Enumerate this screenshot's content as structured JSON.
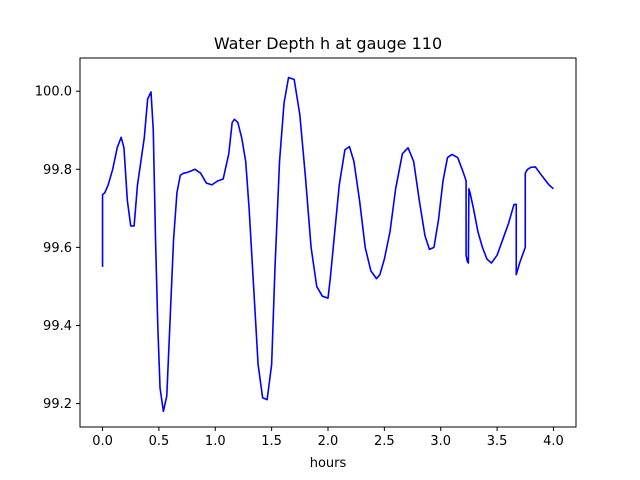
{
  "chart_data": {
    "type": "line",
    "title": "Water Depth h at gauge 110",
    "xlabel": "hours",
    "ylabel": "",
    "xlim": [
      -0.2,
      4.2
    ],
    "ylim": [
      99.14,
      100.085
    ],
    "xticks": [
      0.0,
      0.5,
      1.0,
      1.5,
      2.0,
      2.5,
      3.0,
      3.5,
      4.0
    ],
    "xtick_labels": [
      "0.0",
      "0.5",
      "1.0",
      "1.5",
      "2.0",
      "2.5",
      "3.0",
      "3.5",
      "4.0"
    ],
    "yticks": [
      99.2,
      99.4,
      99.6,
      99.8,
      100.0
    ],
    "ytick_labels": [
      "99.2",
      "99.4",
      "99.6",
      "99.8",
      "100.0"
    ],
    "grid": false,
    "legend": "none",
    "color": "#0000ff",
    "series": [
      {
        "x": [
          0.0,
          0.0,
          0.02,
          0.05,
          0.09,
          0.13,
          0.165,
          0.19,
          0.22,
          0.25,
          0.28,
          0.31,
          0.34,
          0.37,
          0.4,
          0.43,
          0.45,
          0.47,
          0.49,
          0.51,
          0.54,
          0.57,
          0.6,
          0.63,
          0.66,
          0.69,
          0.72,
          0.75,
          0.78,
          0.82,
          0.87,
          0.92,
          0.97,
          1.02,
          1.07,
          1.12,
          1.15,
          1.17,
          1.2,
          1.235,
          1.27,
          1.3,
          1.34,
          1.38,
          1.42,
          1.46,
          1.5,
          1.53,
          1.57,
          1.61,
          1.65,
          1.7,
          1.75,
          1.8,
          1.85,
          1.9,
          1.95,
          2.0,
          2.02,
          2.06,
          2.1,
          2.15,
          2.19,
          2.23,
          2.28,
          2.33,
          2.38,
          2.43,
          2.46,
          2.5,
          2.55,
          2.6,
          2.66,
          2.71,
          2.76,
          2.81,
          2.86,
          2.9,
          2.94,
          2.98,
          3.02,
          3.06,
          3.1,
          3.15,
          3.19,
          3.22,
          3.225,
          3.225,
          3.235,
          3.245,
          3.25,
          3.26,
          3.29,
          3.33,
          3.37,
          3.41,
          3.45,
          3.5,
          3.55,
          3.6,
          3.65,
          3.67,
          3.67,
          3.7,
          3.75,
          3.75,
          3.77,
          3.8,
          3.84,
          3.88,
          3.92,
          3.96,
          4.0
        ],
        "y": [
          99.55,
          99.735,
          99.74,
          99.76,
          99.8,
          99.855,
          99.882,
          99.855,
          99.72,
          99.655,
          99.655,
          99.76,
          99.82,
          99.88,
          99.98,
          99.998,
          99.9,
          99.62,
          99.4,
          99.24,
          99.18,
          99.22,
          99.42,
          99.62,
          99.74,
          99.785,
          99.79,
          99.792,
          99.795,
          99.8,
          99.79,
          99.765,
          99.76,
          99.77,
          99.775,
          99.84,
          99.92,
          99.928,
          99.92,
          99.88,
          99.82,
          99.7,
          99.5,
          99.3,
          99.215,
          99.21,
          99.3,
          99.55,
          99.82,
          99.97,
          100.035,
          100.03,
          99.94,
          99.78,
          99.6,
          99.5,
          99.475,
          99.47,
          99.52,
          99.64,
          99.76,
          99.85,
          99.858,
          99.82,
          99.72,
          99.6,
          99.54,
          99.52,
          99.53,
          99.57,
          99.64,
          99.75,
          99.84,
          99.855,
          99.82,
          99.72,
          99.63,
          99.595,
          99.6,
          99.67,
          99.77,
          99.83,
          99.838,
          99.83,
          99.8,
          99.775,
          99.77,
          99.58,
          99.565,
          99.56,
          99.75,
          99.74,
          99.7,
          99.64,
          99.6,
          99.57,
          99.56,
          99.58,
          99.62,
          99.66,
          99.71,
          99.71,
          99.53,
          99.56,
          99.6,
          99.79,
          99.8,
          99.805,
          99.806,
          99.79,
          99.775,
          99.76,
          99.75
        ]
      }
    ]
  }
}
